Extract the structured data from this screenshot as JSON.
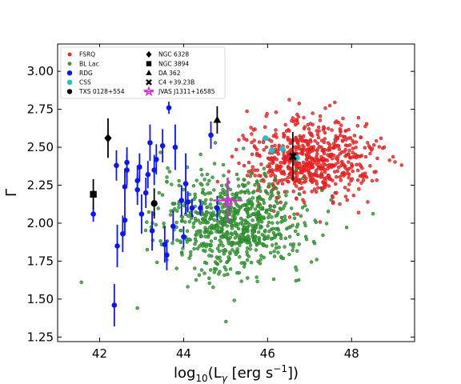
{
  "chart_data": {
    "type": "scatter",
    "title": "",
    "xlabel_parts": [
      "log",
      "10",
      "(L",
      "γ",
      " [erg s",
      "−1",
      "])"
    ],
    "ylabel": "Γ",
    "xlim": [
      41.0,
      49.5
    ],
    "ylim": [
      1.22,
      3.18
    ],
    "xticks": [
      42,
      44,
      46,
      48
    ],
    "xtick_labels": [
      "42",
      "44",
      "46",
      "48"
    ],
    "yticks": [
      1.25,
      1.5,
      1.75,
      2.0,
      2.25,
      2.5,
      2.75,
      3.0
    ],
    "ytick_labels": [
      "1.25",
      "1.50",
      "1.75",
      "2.00",
      "2.25",
      "2.50",
      "2.75",
      "3.00"
    ],
    "grid": false,
    "legend_position": "upper-left",
    "colors": {
      "fsrq": "#ff2a2a",
      "fsrq_edge": "#d01010",
      "bllac": "#3ca03c",
      "bllac_edge": "#1c7a1c",
      "rdg": "#0a14ff",
      "css": "#14c8c8",
      "black": "#000000",
      "magenta": "#cc33cc"
    },
    "clouds": {
      "fsrq": {
        "center": [
          47.0,
          2.42
        ],
        "spread": [
          0.75,
          0.13
        ],
        "count": 640
      },
      "bllac": {
        "center": [
          45.2,
          2.0
        ],
        "spread": [
          0.85,
          0.16
        ],
        "count": 760
      }
    },
    "rdg": [
      {
        "x": 41.85,
        "y": 2.06,
        "err": 0.05
      },
      {
        "x": 42.35,
        "y": 1.46,
        "err": 0.14
      },
      {
        "x": 42.42,
        "y": 1.85,
        "err": 0.14
      },
      {
        "x": 42.4,
        "y": 2.38,
        "err": 0.1
      },
      {
        "x": 42.55,
        "y": 1.93,
        "err": 0.12
      },
      {
        "x": 42.6,
        "y": 2.02,
        "err": 0.1
      },
      {
        "x": 42.6,
        "y": 2.24,
        "err": 0.12
      },
      {
        "x": 42.65,
        "y": 2.4,
        "err": 0.1
      },
      {
        "x": 42.65,
        "y": 2.35,
        "err": 0.1
      },
      {
        "x": 42.9,
        "y": 2.22,
        "err": 0.1
      },
      {
        "x": 42.9,
        "y": 2.28,
        "err": 0.1
      },
      {
        "x": 42.95,
        "y": 2.37,
        "err": 0.09
      },
      {
        "x": 43.0,
        "y": 2.06,
        "err": 0.13
      },
      {
        "x": 43.1,
        "y": 2.2,
        "err": 0.1
      },
      {
        "x": 43.15,
        "y": 2.32,
        "err": 0.09
      },
      {
        "x": 43.2,
        "y": 2.53,
        "err": 0.12
      },
      {
        "x": 43.25,
        "y": 1.95,
        "err": 0.13
      },
      {
        "x": 43.3,
        "y": 2.35,
        "err": 0.1
      },
      {
        "x": 43.35,
        "y": 2.42,
        "err": 0.1
      },
      {
        "x": 43.5,
        "y": 2.51,
        "err": 0.11
      },
      {
        "x": 43.55,
        "y": 1.86,
        "err": 0.12
      },
      {
        "x": 43.6,
        "y": 1.79,
        "err": 0.1
      },
      {
        "x": 43.65,
        "y": 2.76,
        "err": 0.04
      },
      {
        "x": 43.75,
        "y": 1.98,
        "err": 0.1
      },
      {
        "x": 43.8,
        "y": 2.5,
        "err": 0.15
      },
      {
        "x": 43.95,
        "y": 2.15,
        "err": 0.1
      },
      {
        "x": 44.0,
        "y": 1.91,
        "err": 0.07
      },
      {
        "x": 44.05,
        "y": 2.26,
        "err": 0.2
      },
      {
        "x": 44.1,
        "y": 2.14,
        "err": 0.07
      },
      {
        "x": 44.2,
        "y": 2.1,
        "err": 0.06
      },
      {
        "x": 44.4,
        "y": 2.1,
        "err": 0.05
      },
      {
        "x": 44.65,
        "y": 2.58,
        "err": 0.09
      },
      {
        "x": 44.8,
        "y": 2.1,
        "err": 0.08
      }
    ],
    "css": [
      {
        "x": 45.95,
        "y": 2.56
      },
      {
        "x": 46.1,
        "y": 2.48
      },
      {
        "x": 46.35,
        "y": 2.49
      },
      {
        "x": 46.7,
        "y": 2.43
      }
    ],
    "legend": [
      {
        "label": "FSRQ",
        "marker": "small-circle",
        "color": "fsrq"
      },
      {
        "label": "BL Lac",
        "marker": "small-circle",
        "color": "bllac"
      },
      {
        "label": "RDG",
        "marker": "circle",
        "color": "rdg"
      },
      {
        "label": "CSS",
        "marker": "circle",
        "color": "css"
      },
      {
        "label": "TXS 0128+554",
        "marker": "circle",
        "color": "black"
      },
      {
        "label": "NGC 6328",
        "marker": "diamond",
        "color": "black"
      },
      {
        "label": "NGC 3894",
        "marker": "square",
        "color": "black"
      },
      {
        "label": "DA 362",
        "marker": "triangle",
        "color": "black"
      },
      {
        "label": "C4 +39.23B",
        "marker": "x",
        "color": "black"
      },
      {
        "label": "JVAS J1311+16585",
        "marker": "star",
        "color": "magenta"
      }
    ],
    "special": [
      {
        "label": "NGC 6328",
        "marker": "diamond",
        "x": 42.2,
        "y": 2.56,
        "err": 0.13
      },
      {
        "label": "NGC 3894",
        "marker": "square",
        "x": 41.85,
        "y": 2.19,
        "err": 0.1
      },
      {
        "label": "TXS 0128+554",
        "marker": "circle",
        "x": 43.3,
        "y": 2.13,
        "err": 0.1
      },
      {
        "label": "DA 362",
        "marker": "triangle",
        "x": 44.8,
        "y": 2.68,
        "err": 0.09
      },
      {
        "label": "C4 +39.23B",
        "marker": "x",
        "x": 46.6,
        "y": 2.44,
        "err": 0.16
      },
      {
        "label": "JVAS J1311+16585",
        "marker": "star",
        "x": 45.05,
        "y": 2.15,
        "err": 0.15
      }
    ]
  }
}
